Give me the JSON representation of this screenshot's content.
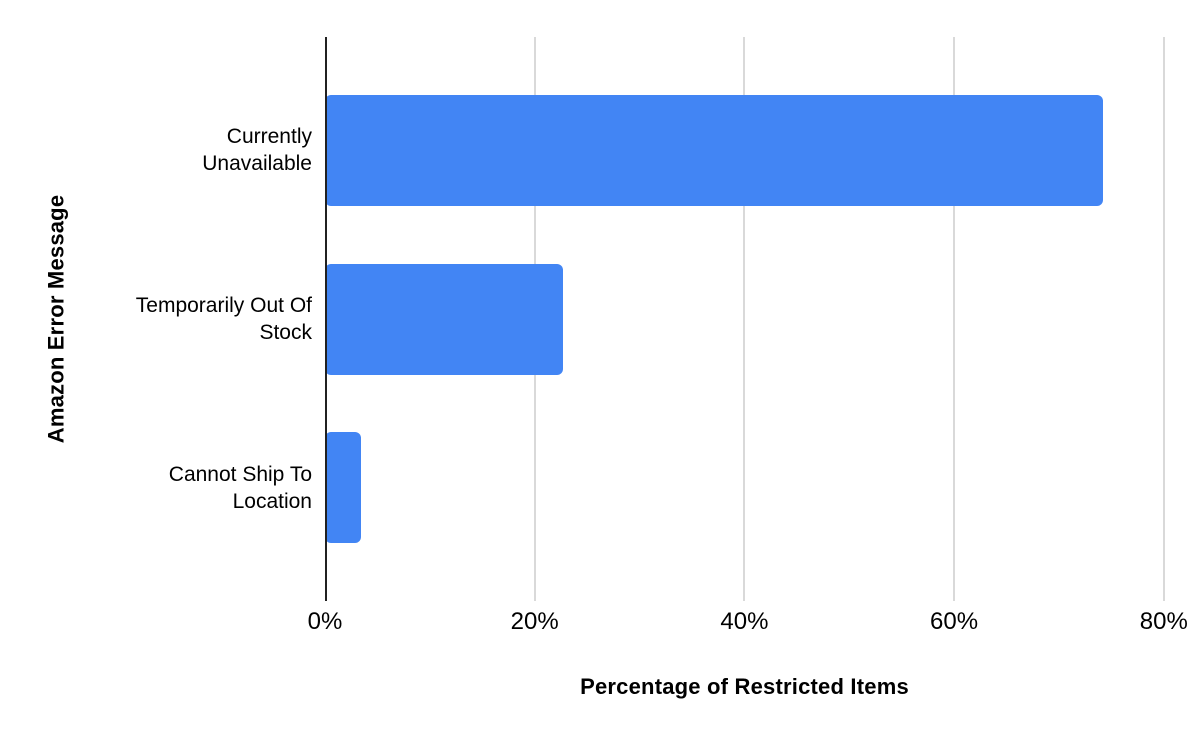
{
  "chart_data": {
    "type": "bar",
    "orientation": "horizontal",
    "title": "",
    "xlabel": "Percentage of Restricted Items",
    "ylabel": "Amazon Error Message",
    "categories": [
      "Currently Unavailable",
      "Temporarily Out Of Stock",
      "Cannot Ship To Location"
    ],
    "values": [
      74.2,
      22.7,
      3.4
    ],
    "value_unit": "%",
    "x_ticks": [
      {
        "value": 0,
        "label": "0%"
      },
      {
        "value": 20,
        "label": "20%"
      },
      {
        "value": 40,
        "label": "40%"
      },
      {
        "value": 60,
        "label": "60%"
      },
      {
        "value": 80,
        "label": "80%"
      }
    ],
    "xlim": [
      0,
      82.5
    ],
    "grid": true,
    "legend": "none",
    "colors": {
      "bar": "#4285f4",
      "gridline": "#d9d9d9",
      "axis_line": "#212121",
      "text": "#000000"
    }
  }
}
